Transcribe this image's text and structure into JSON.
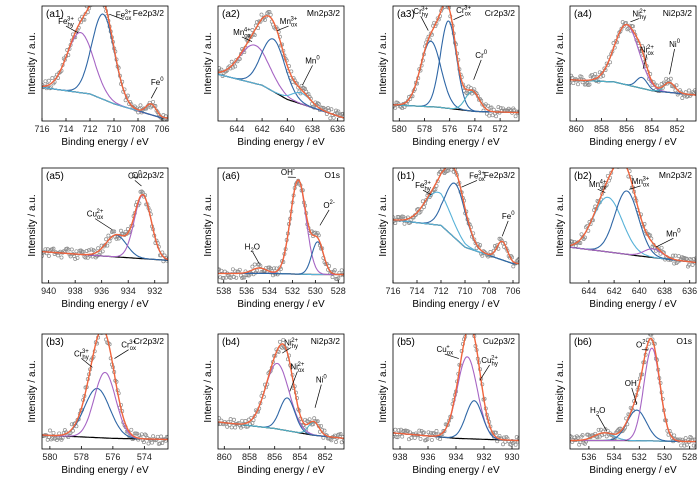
{
  "colors": {
    "points": "#8c8c8c",
    "envelope": "#f0643c",
    "background": "#000000",
    "component_palette": [
      "#2f67a6",
      "#a665c4",
      "#58b2d8",
      "#4fb0c6"
    ]
  },
  "chart_data": [
    {
      "type": "line",
      "panel": "(a1)",
      "region": "Fe2p3/2",
      "xlabel": "Binding energy / eV",
      "ylabel": "Intensity / a.u.",
      "xlim": [
        716,
        705.5
      ],
      "xticks": [
        716,
        714,
        712,
        710,
        708,
        706
      ],
      "background": {
        "x": [
          716,
          712,
          710,
          706
        ],
        "y": [
          0.28,
          0.22,
          0.13,
          0.0
        ]
      },
      "peaks": [
        {
          "label": "Fe",
          "sup": "3+",
          "sub": "hy",
          "center": 712.8,
          "height": 0.55,
          "fwhm": 2.6,
          "color": "#a665c4",
          "text_at": [
            714.0,
            0.86
          ],
          "arrow_to": [
            713.0,
            0.78
          ]
        },
        {
          "label": "Fe",
          "sup": "3+",
          "sub": "ox",
          "center": 710.9,
          "height": 0.78,
          "fwhm": 2.2,
          "color": "#2f67a6",
          "text_at": [
            709.2,
            0.92
          ],
          "arrow_to": [
            710.4,
            0.95
          ]
        },
        {
          "label": "Fe",
          "sup": "0",
          "sub": "",
          "center": 706.9,
          "height": 0.1,
          "fwhm": 1.0,
          "color": "#58b2d8",
          "text_at": [
            706.4,
            0.3
          ],
          "arrow_to": [
            706.9,
            0.18
          ]
        }
      ]
    },
    {
      "type": "line",
      "panel": "(a2)",
      "region": "Mn2p3/2",
      "xlabel": "Binding energy / eV",
      "ylabel": "Intensity / a.u.",
      "xlim": [
        645.5,
        635.5
      ],
      "xticks": [
        644,
        642,
        640,
        638,
        636
      ],
      "background": {
        "x": [
          645.5,
          642,
          640,
          635.5
        ],
        "y": [
          0.4,
          0.3,
          0.17,
          0.0
        ]
      },
      "peaks": [
        {
          "label": "Mn",
          "sup": "4+",
          "sub": "ox",
          "center": 642.6,
          "height": 0.35,
          "fwhm": 2.8,
          "color": "#a665c4",
          "text_at": [
            643.6,
            0.76
          ],
          "arrow_to": [
            642.8,
            0.7
          ]
        },
        {
          "label": "Mn",
          "sup": "3+",
          "sub": "ox",
          "center": 641.1,
          "height": 0.48,
          "fwhm": 2.2,
          "color": "#2f67a6",
          "text_at": [
            639.9,
            0.86
          ],
          "arrow_to": [
            640.8,
            0.8
          ]
        },
        {
          "label": "Mn",
          "sup": "0",
          "sub": "",
          "center": 638.9,
          "height": 0.1,
          "fwhm": 1.8,
          "color": "#58b2d8",
          "text_at": [
            638.0,
            0.5
          ],
          "arrow_to": [
            638.8,
            0.3
          ]
        }
      ]
    },
    {
      "type": "line",
      "panel": "(a3)",
      "region": "Cr2p3/2",
      "xlabel": "Binding energy / eV",
      "ylabel": "Intensity / a.u.",
      "xlim": [
        580.5,
        570.5
      ],
      "xticks": [
        580,
        578,
        576,
        574,
        572
      ],
      "background": {
        "x": [
          580.5,
          577,
          574,
          570.5
        ],
        "y": [
          0.12,
          0.1,
          0.06,
          0.05
        ]
      },
      "peaks": [
        {
          "label": "Cr",
          "sup": "3+",
          "sub": "hy",
          "center": 577.5,
          "height": 0.6,
          "fwhm": 1.9,
          "color": "#2f67a6",
          "text_at": [
            578.3,
            0.95
          ],
          "arrow_to": [
            577.7,
            0.8
          ]
        },
        {
          "label": "Cr",
          "sup": "3+",
          "sub": "ox",
          "center": 576.1,
          "height": 0.8,
          "fwhm": 1.5,
          "color": "#2f67a6",
          "text_at": [
            574.9,
            0.96
          ],
          "arrow_to": [
            575.7,
            0.9
          ]
        },
        {
          "label": "Cr",
          "sup": "0",
          "sub": "",
          "center": 574.2,
          "height": 0.18,
          "fwhm": 1.3,
          "color": "#4fb0c6",
          "text_at": [
            573.5,
            0.55
          ],
          "arrow_to": [
            574.1,
            0.35
          ]
        }
      ]
    },
    {
      "type": "line",
      "panel": "(a4)",
      "region": "Ni2p3/2",
      "xlabel": "Binding energy / eV",
      "ylabel": "Intensity / a.u.",
      "xlim": [
        860.5,
        850.5
      ],
      "xticks": [
        860,
        858,
        856,
        854,
        852
      ],
      "background": {
        "x": [
          860.5,
          857,
          854,
          850.5
        ],
        "y": [
          0.35,
          0.33,
          0.25,
          0.21
        ]
      },
      "peaks": [
        {
          "label": "Ni",
          "sup": "2+",
          "sub": "hy",
          "center": 856.0,
          "height": 0.55,
          "fwhm": 2.3,
          "color": "#a665c4",
          "text_at": [
            855.0,
            0.93
          ],
          "arrow_to": [
            855.7,
            0.88
          ]
        },
        {
          "label": "Ni",
          "sup": "2+",
          "sub": "ox",
          "center": 854.8,
          "height": 0.1,
          "fwhm": 1.0,
          "color": "#2f67a6",
          "text_at": [
            854.4,
            0.6
          ],
          "arrow_to": [
            854.7,
            0.45
          ]
        },
        {
          "label": "Ni",
          "sup": "0",
          "sub": "",
          "center": 852.6,
          "height": 0.09,
          "fwhm": 1.0,
          "color": "#4fb0c6",
          "text_at": [
            852.2,
            0.65
          ],
          "arrow_to": [
            852.6,
            0.4
          ]
        }
      ]
    },
    {
      "type": "line",
      "panel": "(a5)",
      "region": "Cu2p3/2",
      "xlabel": "Binding energy / eV",
      "ylabel": "Intensity / a.u.",
      "xlim": [
        940.5,
        931
      ],
      "xticks": [
        940,
        938,
        936,
        934,
        932
      ],
      "background": {
        "x": [
          940.5,
          936,
          931
        ],
        "y": [
          0.26,
          0.22,
          0.18
        ]
      },
      "peaks": [
        {
          "label": "Cu",
          "sup": "2+",
          "sub": "ox",
          "center": 934.9,
          "height": 0.2,
          "fwhm": 1.8,
          "color": "#2f67a6",
          "text_at": [
            936.5,
            0.58
          ],
          "arrow_to": [
            935.2,
            0.46
          ]
        },
        {
          "label": "Cu",
          "sup": "0",
          "sub": "",
          "center": 932.9,
          "height": 0.58,
          "fwhm": 1.5,
          "color": "#a665c4",
          "text_at": [
            933.5,
            0.93
          ],
          "arrow_to": [
            933.0,
            0.86
          ]
        }
      ]
    },
    {
      "type": "line",
      "panel": "(a6)",
      "region": "O1s",
      "xlabel": "Binding energy / eV",
      "ylabel": "Intensity / a.u.",
      "xlim": [
        538.5,
        527.5
      ],
      "xticks": [
        538,
        536,
        534,
        532,
        530,
        528
      ],
      "background": {
        "x": [
          538.5,
          534,
          530,
          527.5
        ],
        "y": [
          0.06,
          0.06,
          0.05,
          0.05
        ]
      },
      "peaks": [
        {
          "label": "H",
          "sup": "",
          "sub": "2",
          "tail": "O",
          "center": 534.9,
          "height": 0.05,
          "fwhm": 1.5,
          "color": "#58b2d8",
          "text_at": [
            535.5,
            0.28
          ],
          "arrow_to": [
            534.9,
            0.15
          ]
        },
        {
          "label": "OH",
          "sup": "-",
          "sub": "",
          "center": 531.5,
          "height": 0.86,
          "fwhm": 1.6,
          "color": "#a665c4",
          "text_at": [
            532.4,
            0.96
          ],
          "arrow_to": [
            531.7,
            0.94
          ]
        },
        {
          "label": "O",
          "sup": "2-",
          "sub": "",
          "center": 529.8,
          "height": 0.3,
          "fwhm": 1.2,
          "color": "#2f67a6",
          "text_at": [
            528.8,
            0.66
          ],
          "arrow_to": [
            529.6,
            0.5
          ]
        }
      ]
    },
    {
      "type": "line",
      "panel": "(b1)",
      "region": "Fe2p3/2",
      "xlabel": "Binding energy / eV",
      "ylabel": "Intensity / a.u.",
      "xlim": [
        716,
        705.5
      ],
      "xticks": [
        716,
        714,
        712,
        710,
        708,
        706
      ],
      "background": {
        "x": [
          716,
          712,
          710,
          706
        ],
        "y": [
          0.55,
          0.5,
          0.3,
          0.15
        ]
      },
      "peaks": [
        {
          "label": "Fe",
          "sup": "3+",
          "sub": "hy",
          "center": 712.3,
          "height": 0.3,
          "fwhm": 2.6,
          "color": "#58b2d8",
          "text_at": [
            713.5,
            0.84
          ],
          "arrow_to": [
            712.8,
            0.78
          ]
        },
        {
          "label": "Fe",
          "sup": "3+",
          "sub": "ox",
          "center": 710.8,
          "height": 0.5,
          "fwhm": 2.0,
          "color": "#2f67a6",
          "text_at": [
            709.0,
            0.93
          ],
          "arrow_to": [
            710.3,
            0.85
          ]
        },
        {
          "label": "Fe",
          "sup": "0",
          "sub": "",
          "center": 706.9,
          "height": 0.17,
          "fwhm": 1.0,
          "color": "#58b2d8",
          "text_at": [
            706.4,
            0.56
          ],
          "arrow_to": [
            706.9,
            0.4
          ]
        }
      ]
    },
    {
      "type": "line",
      "panel": "(b2)",
      "region": "Mn2p3/2",
      "xlabel": "Binding energy / eV",
      "ylabel": "Intensity / a.u.",
      "xlim": [
        645.5,
        635.5
      ],
      "xticks": [
        644,
        642,
        640,
        638,
        636
      ],
      "background": {
        "x": [
          645.5,
          642,
          640,
          635.5
        ],
        "y": [
          0.3,
          0.25,
          0.22,
          0.16
        ]
      },
      "peaks": [
        {
          "label": "Mn",
          "sup": "4+",
          "sub": "ox",
          "center": 642.5,
          "height": 0.5,
          "fwhm": 2.7,
          "color": "#58b2d8",
          "text_at": [
            643.3,
            0.85
          ],
          "arrow_to": [
            642.7,
            0.8
          ]
        },
        {
          "label": "Mn",
          "sup": "3+",
          "sub": "ox",
          "center": 641.0,
          "height": 0.58,
          "fwhm": 2.2,
          "color": "#2f67a6",
          "text_at": [
            639.9,
            0.88
          ],
          "arrow_to": [
            640.8,
            0.83
          ]
        },
        {
          "label": "Mn",
          "sup": "0",
          "sub": "",
          "center": 638.9,
          "height": 0.08,
          "fwhm": 1.7,
          "color": "#a665c4",
          "text_at": [
            637.3,
            0.4
          ],
          "arrow_to": [
            638.7,
            0.3
          ]
        }
      ]
    },
    {
      "type": "line",
      "panel": "(b3)",
      "region": "Cr2p3/2",
      "xlabel": "Binding energy / eV",
      "ylabel": "Intensity / a.u.",
      "xlim": [
        580.5,
        572.5
      ],
      "xticks": [
        580,
        578,
        576,
        574
      ],
      "background": {
        "x": [
          580.5,
          576,
          572.5
        ],
        "y": [
          0.1,
          0.07,
          0.06
        ]
      },
      "peaks": [
        {
          "label": "Cr",
          "sup": "3+",
          "sub": "hy",
          "center": 577.0,
          "height": 0.45,
          "fwhm": 1.9,
          "color": "#2f67a6",
          "text_at": [
            578.0,
            0.82
          ],
          "arrow_to": [
            577.3,
            0.72
          ]
        },
        {
          "label": "Cr",
          "sup": "3+",
          "sub": "ox",
          "center": 576.5,
          "height": 0.6,
          "fwhm": 1.6,
          "color": "#a665c4",
          "text_at": [
            575.0,
            0.9
          ],
          "arrow_to": [
            575.9,
            0.8
          ]
        }
      ]
    },
    {
      "type": "line",
      "panel": "(b4)",
      "region": "Ni2p3/2",
      "xlabel": "Binding energy / eV",
      "ylabel": "Intensity / a.u.",
      "xlim": [
        860.5,
        850.5
      ],
      "xticks": [
        860,
        858,
        856,
        854,
        852
      ],
      "background": {
        "x": [
          860.5,
          856,
          853,
          850.5
        ],
        "y": [
          0.22,
          0.16,
          0.1,
          0.07
        ]
      },
      "peaks": [
        {
          "label": "Ni",
          "sup": "2+",
          "sub": "hy",
          "center": 855.8,
          "height": 0.6,
          "fwhm": 2.2,
          "color": "#a665c4",
          "text_at": [
            854.7,
            0.92
          ],
          "arrow_to": [
            855.4,
            0.85
          ]
        },
        {
          "label": "Ni",
          "sup": "2+",
          "sub": "ox",
          "center": 855.0,
          "height": 0.3,
          "fwhm": 1.4,
          "color": "#2f67a6",
          "text_at": [
            854.2,
            0.7
          ],
          "arrow_to": [
            854.8,
            0.5
          ]
        },
        {
          "label": "Ni",
          "sup": "0",
          "sub": "",
          "center": 852.9,
          "height": 0.12,
          "fwhm": 1.0,
          "color": "#4fb0c6",
          "text_at": [
            852.3,
            0.58
          ],
          "arrow_to": [
            852.8,
            0.35
          ]
        }
      ]
    },
    {
      "type": "line",
      "panel": "(b5)",
      "region": "Cu2p3/2",
      "xlabel": "Binding energy / eV",
      "ylabel": "Intensity / a.u.",
      "xlim": [
        938.5,
        929.5
      ],
      "xticks": [
        938,
        936,
        934,
        932,
        930
      ],
      "background": {
        "x": [
          938.5,
          934,
          929.5
        ],
        "y": [
          0.12,
          0.07,
          0.05
        ]
      },
      "peaks": [
        {
          "label": "Cu",
          "sup": "+",
          "sub": "ox",
          "center": 933.2,
          "height": 0.75,
          "fwhm": 1.7,
          "color": "#a665c4",
          "text_at": [
            934.8,
            0.86
          ],
          "arrow_to": [
            933.8,
            0.8
          ]
        },
        {
          "label": "Cu",
          "sup": "2+",
          "sub": "hy",
          "center": 932.7,
          "height": 0.35,
          "fwhm": 1.4,
          "color": "#2f67a6",
          "text_at": [
            931.6,
            0.76
          ],
          "arrow_to": [
            932.3,
            0.6
          ]
        }
      ]
    },
    {
      "type": "line",
      "panel": "(b6)",
      "region": "O1s",
      "xlabel": "Binding energy / eV",
      "ylabel": "Intensity / a.u.",
      "xlim": [
        537.5,
        527.5
      ],
      "xticks": [
        536,
        534,
        532,
        530,
        528
      ],
      "background": {
        "x": [
          537.5,
          533,
          527.5
        ],
        "y": [
          0.05,
          0.05,
          0.04
        ]
      },
      "peaks": [
        {
          "label": "H",
          "sup": "",
          "sub": "2",
          "tail": "O",
          "center": 534.8,
          "height": 0.07,
          "fwhm": 1.8,
          "color": "#58b2d8",
          "text_at": [
            535.3,
            0.3
          ],
          "arrow_to": [
            534.6,
            0.14
          ]
        },
        {
          "label": "OH",
          "sup": "-",
          "sub": "",
          "center": 532.2,
          "height": 0.28,
          "fwhm": 1.8,
          "color": "#2f67a6",
          "text_at": [
            532.6,
            0.55
          ],
          "arrow_to": [
            532.2,
            0.38
          ]
        },
        {
          "label": "O",
          "sup": "2-",
          "sub": "",
          "center": 531.0,
          "height": 0.85,
          "fwhm": 1.5,
          "color": "#a665c4",
          "text_at": [
            531.8,
            0.9
          ],
          "arrow_to": [
            531.3,
            0.88
          ]
        }
      ]
    }
  ]
}
